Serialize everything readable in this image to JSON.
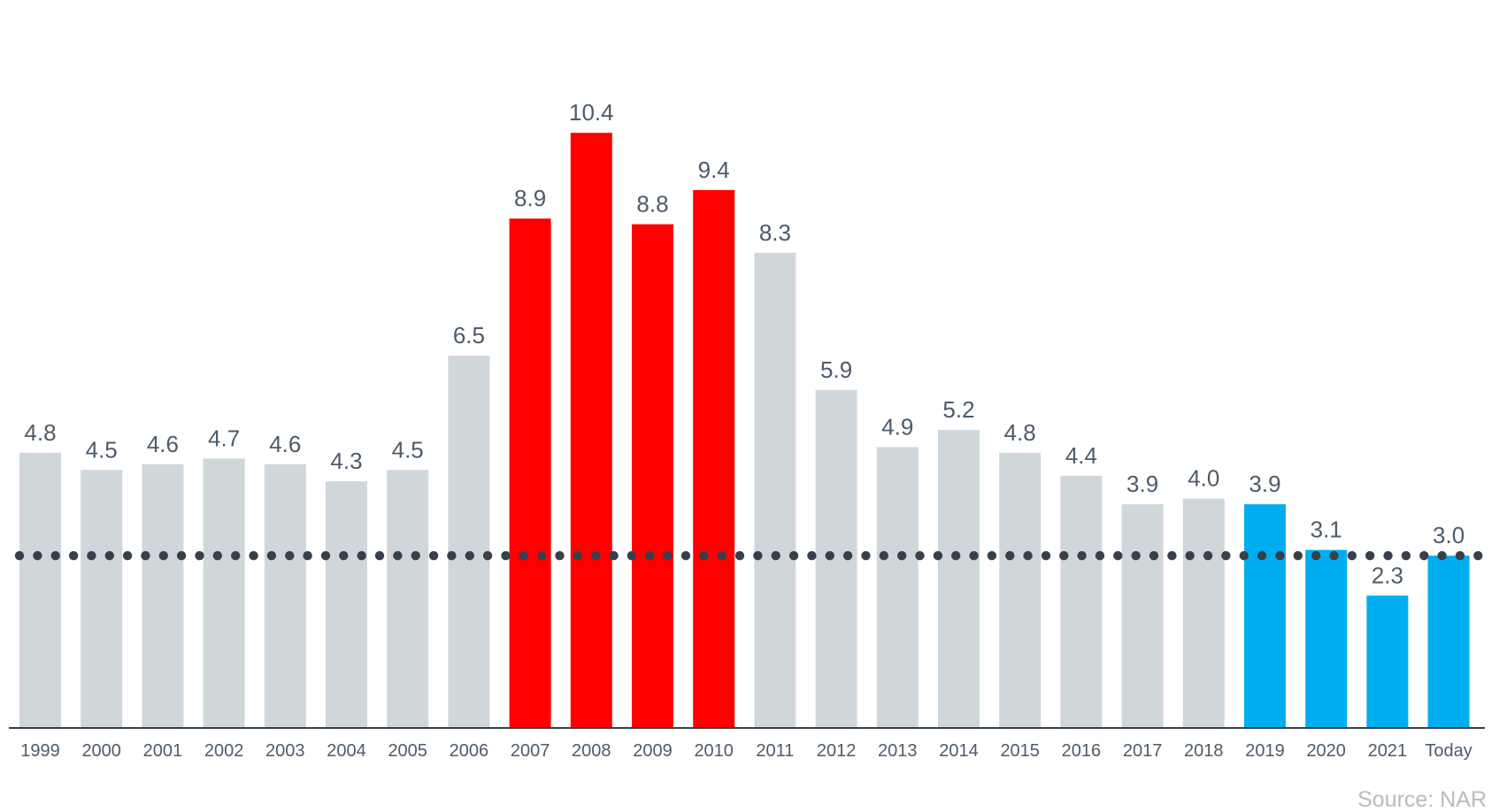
{
  "chart_data": {
    "type": "bar",
    "categories": [
      "1999",
      "2000",
      "2001",
      "2002",
      "2003",
      "2004",
      "2005",
      "2006",
      "2007",
      "2008",
      "2009",
      "2010",
      "2011",
      "2012",
      "2013",
      "2014",
      "2015",
      "2016",
      "2017",
      "2018",
      "2019",
      "2020",
      "2021",
      "Today"
    ],
    "values": [
      4.8,
      4.5,
      4.6,
      4.7,
      4.6,
      4.3,
      4.5,
      6.5,
      8.9,
      10.4,
      8.8,
      9.4,
      8.3,
      5.9,
      4.9,
      5.2,
      4.8,
      4.4,
      3.9,
      4.0,
      3.9,
      3.1,
      2.3,
      3.0
    ],
    "value_labels": [
      "4.8",
      "4.5",
      "4.6",
      "4.7",
      "4.6",
      "4.3",
      "4.5",
      "6.5",
      "8.9",
      "10.4",
      "8.8",
      "9.4",
      "8.3",
      "5.9",
      "4.9",
      "5.2",
      "4.8",
      "4.4",
      "3.9",
      "4.0",
      "3.9",
      "3.1",
      "2.3",
      "3.0"
    ],
    "bar_groups": [
      "gray",
      "gray",
      "gray",
      "gray",
      "gray",
      "gray",
      "gray",
      "gray",
      "red",
      "red",
      "red",
      "red",
      "gray",
      "gray",
      "gray",
      "gray",
      "gray",
      "gray",
      "gray",
      "gray",
      "blue",
      "blue",
      "blue",
      "blue"
    ],
    "colors": {
      "gray": "#cfd7da",
      "red": "#ff0000",
      "blue": "#00aeef",
      "reference_line": "#37404a",
      "axis": "#37404a"
    },
    "reference_line_value": 3.0,
    "ylim": [
      0,
      11.4
    ],
    "title": "",
    "xlabel": "",
    "ylabel": "",
    "grid": false,
    "source": "Source: NAR"
  }
}
